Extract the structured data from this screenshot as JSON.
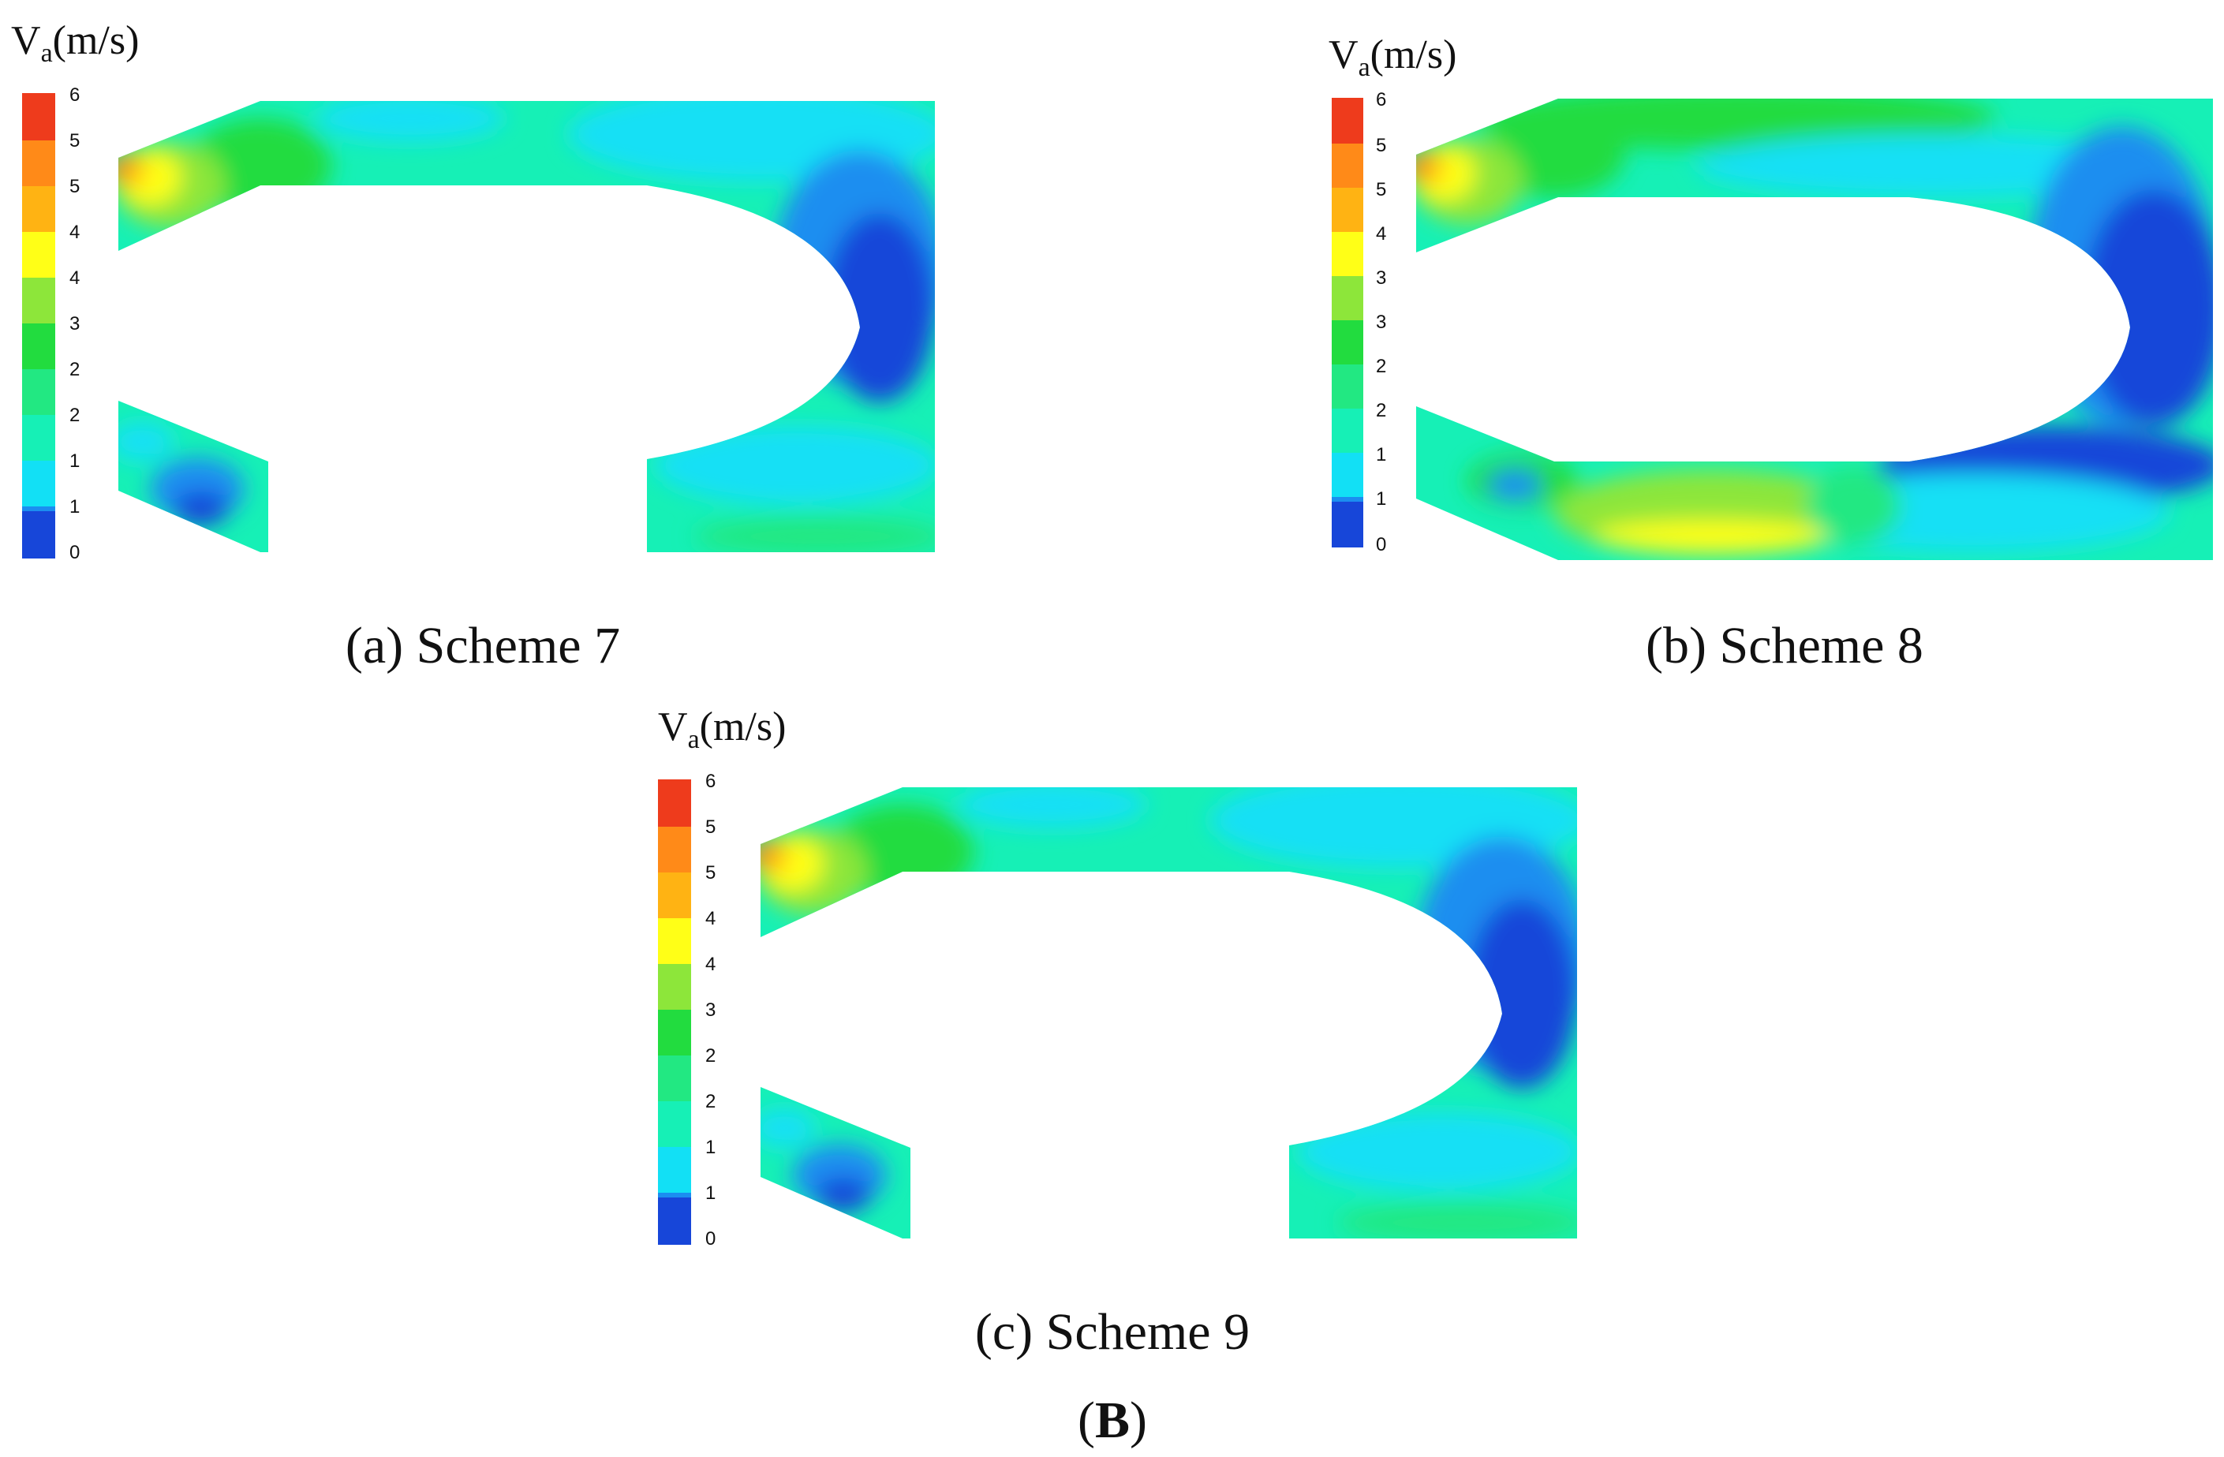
{
  "figure_label": "B",
  "chart_data": [
    {
      "type": "heatmap",
      "subtitle": "(a) Scheme 7",
      "colorbar": {
        "title": "V",
        "title_sub": "a",
        "title_unit": "(m/s)",
        "ticks": [
          "6",
          "5",
          "5",
          "4",
          "4",
          "3",
          "2",
          "2",
          "1",
          "1",
          "0"
        ],
        "range": [
          0,
          6
        ]
      },
      "max_velocity_region": "inlet upper-left",
      "low_velocity_region": "right side of bend"
    },
    {
      "type": "heatmap",
      "subtitle": "(b) Scheme 8",
      "colorbar": {
        "title": "V",
        "title_sub": "a",
        "title_unit": "(m/s)",
        "ticks": [
          "6",
          "5",
          "5",
          "4",
          "3",
          "3",
          "2",
          "2",
          "1",
          "1",
          "0"
        ],
        "range": [
          0,
          6
        ]
      },
      "max_velocity_region": "inlet upper-left",
      "low_velocity_region": "right side of bend"
    },
    {
      "type": "heatmap",
      "subtitle": "(c) Scheme 9",
      "colorbar": {
        "title": "V",
        "title_sub": "a",
        "title_unit": "(m/s)",
        "ticks": [
          "6",
          "5",
          "5",
          "4",
          "4",
          "3",
          "2",
          "2",
          "1",
          "1",
          "0"
        ],
        "range": [
          0,
          6
        ]
      },
      "max_velocity_region": "inlet upper-left",
      "low_velocity_region": "right side of bend"
    }
  ],
  "colors": {
    "scale": [
      "#1746d9",
      "#1b8ef0",
      "#12e0f5",
      "#16f0b6",
      "#22e882",
      "#22dc3f",
      "#8de63a",
      "#ffff17",
      "#ffb313",
      "#ff8a18",
      "#ee3b1c"
    ],
    "background": "#ffffff",
    "channel_outline": "#29b6f6"
  }
}
